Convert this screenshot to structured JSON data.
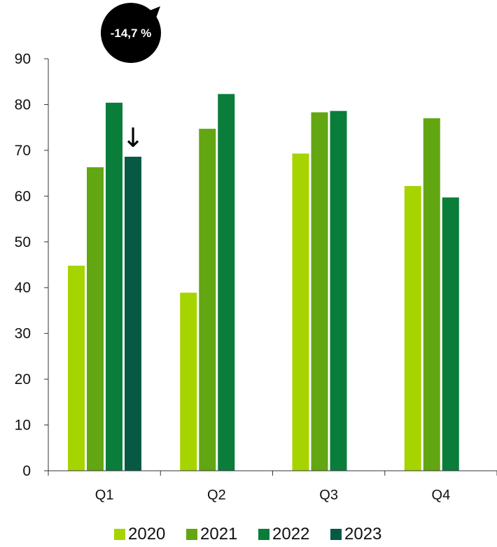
{
  "chart_data": {
    "type": "bar",
    "categories": [
      "Q1",
      "Q2",
      "Q3",
      "Q4"
    ],
    "series": [
      {
        "name": "2020",
        "color": "#a6d400",
        "values": [
          44.8,
          38.9,
          69.3,
          62.2
        ]
      },
      {
        "name": "2021",
        "color": "#62a612",
        "values": [
          66.3,
          74.7,
          78.3,
          77.0
        ]
      },
      {
        "name": "2022",
        "color": "#0a7d3a",
        "values": [
          80.4,
          82.3,
          78.6,
          59.7
        ]
      },
      {
        "name": "2023",
        "color": "#065a45",
        "values": [
          68.6,
          null,
          null,
          null
        ]
      }
    ],
    "ylim": [
      0,
      90
    ],
    "yticks": [
      0,
      10,
      20,
      30,
      40,
      50,
      60,
      70,
      80,
      90
    ],
    "legend_position": "bottom",
    "grid": false,
    "annotation": {
      "text": "-14,7 %",
      "arrow": "↓",
      "category": "Q1",
      "series": "2023"
    }
  }
}
